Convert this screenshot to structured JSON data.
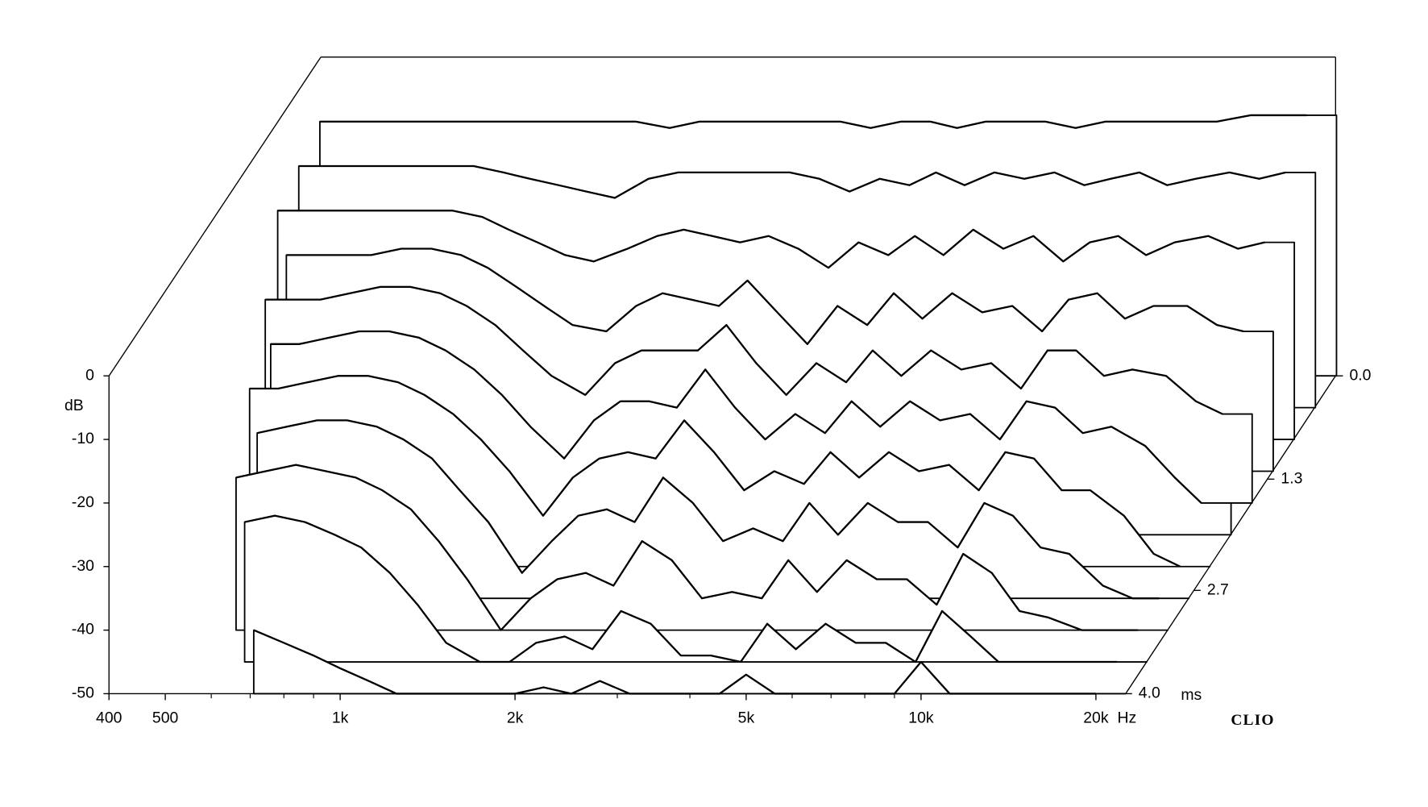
{
  "chart_data": {
    "type": "waterfall",
    "x": [
      400,
      450,
      500,
      560,
      630,
      710,
      800,
      900,
      1000,
      1120,
      1250,
      1400,
      1600,
      1800,
      2000,
      2240,
      2500,
      2800,
      3150,
      3550,
      4000,
      4500,
      5000,
      5600,
      6300,
      7100,
      8000,
      9000,
      10000,
      11200,
      12500,
      14000,
      16000,
      18000,
      20000
    ],
    "xlim": [
      400,
      22500
    ],
    "xticks": [
      400,
      500,
      {
        "value": 1000,
        "label": "1k"
      },
      {
        "value": 2000,
        "label": "2k"
      },
      {
        "value": 5000,
        "label": "5k"
      },
      {
        "value": 10000,
        "label": "10k"
      },
      {
        "value": 20000,
        "label": "20k"
      }
    ],
    "xminorticks": [
      600,
      700,
      800,
      900,
      3000,
      4000,
      6000,
      7000,
      8000,
      9000
    ],
    "x_unit": "Hz",
    "ylim": [
      -50,
      0
    ],
    "yticks": [
      0,
      -10,
      -20,
      -30,
      -40,
      -50
    ],
    "y_unit": "dB",
    "zlim": [
      0,
      4
    ],
    "zticks": [
      {
        "value": 0,
        "label": "0.0"
      },
      1.3,
      2.7,
      {
        "value": 4,
        "label": "4.0"
      }
    ],
    "z_unit": "ms",
    "brand": "CLIO",
    "slices": [
      {
        "t": 0,
        "values": [
          -10,
          -10,
          -10,
          -10,
          -10,
          -10,
          -10,
          -10,
          -10,
          -10,
          -10,
          -10,
          -11,
          -10,
          -10,
          -10,
          -10,
          -10,
          -10,
          -11,
          -10,
          -10,
          -11,
          -10,
          -10,
          -10,
          -11,
          -10,
          -10,
          -10,
          -10,
          -10,
          -9,
          -9,
          -9
        ]
      },
      {
        "t": 0.4,
        "values": [
          -12,
          -12,
          -12,
          -12,
          -12,
          -12,
          -12,
          -13,
          -14,
          -15,
          -16,
          -17,
          -14,
          -13,
          -13,
          -13,
          -13,
          -13,
          -14,
          -16,
          -14,
          -15,
          -13,
          -15,
          -13,
          -14,
          -13,
          -15,
          -14,
          -13,
          -15,
          -14,
          -13,
          -14,
          -13
        ]
      },
      {
        "t": 0.8,
        "values": [
          -14,
          -14,
          -14,
          -14,
          -14,
          -14,
          -14,
          -15,
          -17,
          -19,
          -21,
          -22,
          -20,
          -18,
          -17,
          -18,
          -19,
          -18,
          -20,
          -23,
          -19,
          -21,
          -18,
          -21,
          -17,
          -20,
          -18,
          -22,
          -19,
          -18,
          -21,
          -19,
          -18,
          -20,
          -19
        ]
      },
      {
        "t": 1.2,
        "values": [
          null,
          -16,
          -16,
          -16,
          -16,
          -15,
          -15,
          -16,
          -18,
          -21,
          -24,
          -27,
          -28,
          -24,
          -22,
          -23,
          -24,
          -20,
          -25,
          -30,
          -24,
          -27,
          -22,
          -26,
          -22,
          -25,
          -24,
          -28,
          -23,
          -22,
          -26,
          -24,
          -24,
          -27,
          -28
        ]
      },
      {
        "t": 1.6,
        "values": [
          null,
          -18,
          -18,
          -18,
          -17,
          -16,
          -16,
          -17,
          -19,
          -22,
          -26,
          -30,
          -33,
          -28,
          -26,
          -26,
          -26,
          -22,
          -28,
          -33,
          -28,
          -31,
          -26,
          -30,
          -26,
          -29,
          -28,
          -32,
          -26,
          -26,
          -30,
          -29,
          -30,
          -34,
          -36
        ]
      },
      {
        "t": 2.0,
        "values": [
          null,
          null,
          -20,
          -20,
          -19,
          -18,
          -18,
          -19,
          -21,
          -24,
          -28,
          -33,
          -38,
          -32,
          -29,
          -29,
          -30,
          -24,
          -30,
          -35,
          -31,
          -34,
          -29,
          -33,
          -29,
          -32,
          -31,
          -35,
          -29,
          -30,
          -34,
          -33,
          -36,
          -41,
          -45
        ]
      },
      {
        "t": 2.4,
        "values": [
          null,
          null,
          -22,
          -22,
          -21,
          -20,
          -20,
          -21,
          -23,
          -26,
          -30,
          -35,
          -42,
          -36,
          -33,
          -32,
          -33,
          -27,
          -32,
          -38,
          -35,
          -37,
          -32,
          -36,
          -32,
          -35,
          -34,
          -38,
          -32,
          -33,
          -38,
          -38,
          -42,
          -48,
          -50
        ]
      },
      {
        "t": 2.8,
        "values": [
          null,
          null,
          null,
          -24,
          -23,
          -22,
          -22,
          -23,
          -25,
          -28,
          -33,
          -38,
          -46,
          -41,
          -37,
          -36,
          -38,
          -31,
          -35,
          -41,
          -39,
          -41,
          -35,
          -40,
          -35,
          -38,
          -38,
          -42,
          -35,
          -37,
          -42,
          -43,
          -48,
          -50,
          -50
        ]
      },
      {
        "t": 3.2,
        "values": [
          null,
          null,
          null,
          -26,
          -25,
          -24,
          -25,
          -26,
          -28,
          -31,
          -36,
          -42,
          -50,
          -45,
          -42,
          -41,
          -43,
          -36,
          -39,
          -45,
          -44,
          -45,
          -39,
          -44,
          -39,
          -42,
          -42,
          -46,
          -38,
          -41,
          -47,
          -48,
          -50,
          -50,
          -50
        ]
      },
      {
        "t": 3.6,
        "values": [
          null,
          null,
          null,
          null,
          -28,
          -27,
          -28,
          -30,
          -32,
          -36,
          -41,
          -47,
          -50,
          -50,
          -47,
          -46,
          -48,
          -42,
          -44,
          -49,
          -49,
          -50,
          -44,
          -48,
          -44,
          -47,
          -47,
          -50,
          -42,
          -46,
          -50,
          -50,
          -50,
          -50,
          -50
        ]
      },
      {
        "t": 4.0,
        "values": [
          null,
          null,
          null,
          null,
          null,
          -40,
          -42,
          -44,
          -46,
          -48,
          -50,
          -50,
          -50,
          -50,
          -50,
          -49,
          -50,
          -48,
          -50,
          -50,
          -50,
          -50,
          -47,
          -50,
          -50,
          -50,
          -50,
          -50,
          -45,
          -50,
          -50,
          -50,
          -50,
          -50,
          -50
        ]
      }
    ]
  }
}
